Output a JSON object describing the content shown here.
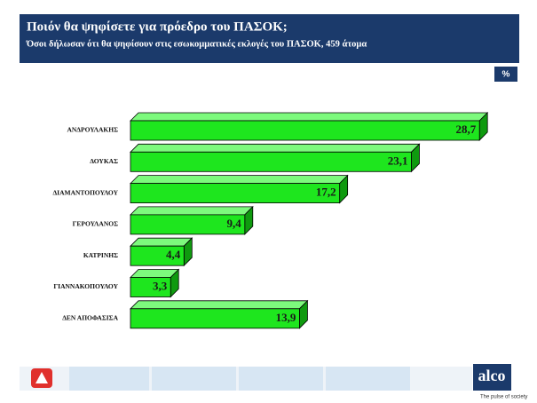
{
  "chart_data": {
    "type": "bar",
    "orientation": "horizontal",
    "title": "Ποιόν θα ψηφίσετε για πρόεδρο του ΠΑΣΟΚ;",
    "subtitle": "Όσοι δήλωσαν ότι θα ψηφίσουν στις εσωκομματικές εκλογές του ΠΑΣΟΚ, 459 άτομα",
    "unit_label": "%",
    "categories": [
      "ΑΝΔΡΟΥΛΑΚΗΣ",
      "ΔΟΥΚΑΣ",
      "ΔΙΑΜΑΝΤΟΠΟΥΛΟΥ",
      "ΓΕΡΟΥΛΑΝΟΣ",
      "ΚΑΤΡΙΝΗΣ",
      "ΓΙΑΝΝΑΚΟΠΟΥΛΟΥ",
      "ΔΕΝ ΑΠΟΦΑΣΙΣΑ"
    ],
    "values": [
      28.7,
      23.1,
      17.2,
      9.4,
      4.4,
      3.3,
      13.9
    ],
    "value_labels": [
      "28,7",
      "23,1",
      "17,2",
      "9,4",
      "4,4",
      "3,3",
      "13,9"
    ],
    "color": "#1ee61e"
  },
  "footer": {
    "brand": "alco",
    "tagline": "The pulse of society"
  }
}
